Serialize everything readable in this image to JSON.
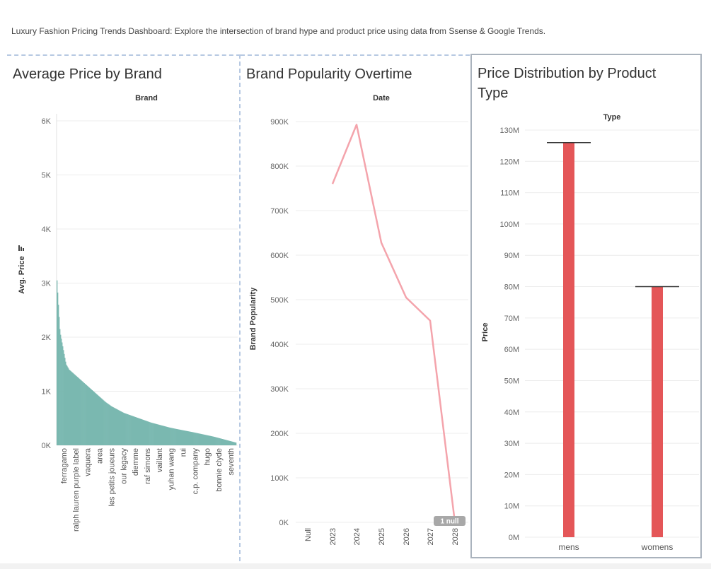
{
  "dashboard": {
    "subtitle": "Luxury Fashion Pricing Trends Dashboard: Explore the intersection of brand hype and product price using data from Ssense & Google Trends."
  },
  "colors": {
    "teal": "#7ab8b0",
    "pink": "#f4a4ac",
    "red": "#e45658",
    "panel_border": "#b7c9e2"
  },
  "chart_data": [
    {
      "type": "bar",
      "title": "Average Price by Brand",
      "column_header": "Brand",
      "ylabel": "Avg. Price",
      "ylim": [
        0,
        6000
      ],
      "y_ticks": [
        "0K",
        "1K",
        "2K",
        "3K",
        "4K",
        "5K",
        "6K"
      ],
      "sort_icon": "sort-descending-icon",
      "brand_labels": [
        "ferragamo",
        "ralph lauren purple label",
        "vaquera",
        "area",
        "les petits joueurs",
        "our legacy",
        "diemme",
        "raf simons",
        "vaillant",
        "yuhan wang",
        "rui",
        "c.p. company",
        "hugo",
        "bonnie clyde",
        "seventh"
      ],
      "bar_count": 250,
      "sorted_values_profile": [
        3050,
        2100,
        1800,
        1500,
        1400,
        1350,
        1300,
        1250,
        1200,
        1150,
        1100,
        1050,
        1000,
        950,
        900,
        850,
        800,
        760,
        720,
        690,
        660,
        630,
        600,
        580,
        560,
        540,
        520,
        500,
        480,
        460,
        440,
        420,
        405,
        390,
        375,
        360,
        345,
        330,
        318,
        306,
        295,
        284,
        273,
        262,
        251,
        240,
        228,
        216,
        204,
        192,
        180,
        168,
        155,
        140,
        125,
        110,
        95,
        80,
        65,
        50
      ]
    },
    {
      "type": "line",
      "title": "Brand Popularity Overtime",
      "column_header": "Date",
      "ylabel": "Brand Popularity",
      "ylim": [
        0,
        900000
      ],
      "y_ticks": [
        "0K",
        "100K",
        "200K",
        "300K",
        "400K",
        "500K",
        "600K",
        "700K",
        "800K",
        "900K"
      ],
      "x": [
        "Null",
        "2023",
        "2024",
        "2025",
        "2026",
        "2027",
        "2028"
      ],
      "series": [
        {
          "values": [
            null,
            760000,
            893000,
            628000,
            505000,
            453000,
            0
          ]
        }
      ],
      "null_badge": "1 null"
    },
    {
      "type": "bar",
      "title": "Price Distribution by Product Type",
      "column_header": "Type",
      "ylabel": "Price",
      "ylim": [
        0,
        130000000
      ],
      "y_ticks": [
        "0M",
        "10M",
        "20M",
        "30M",
        "40M",
        "50M",
        "60M",
        "70M",
        "80M",
        "90M",
        "100M",
        "110M",
        "120M",
        "130M"
      ],
      "categories": [
        "mens",
        "womens"
      ],
      "values": [
        126000000,
        80000000
      ]
    }
  ]
}
